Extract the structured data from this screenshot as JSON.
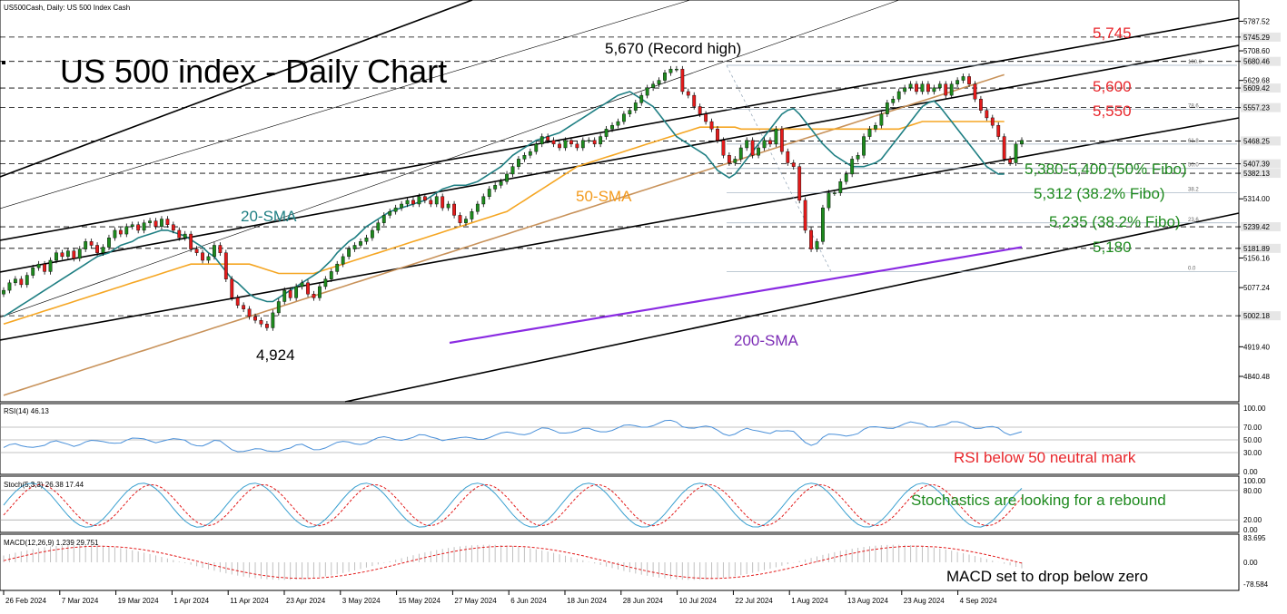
{
  "header": {
    "symbol_label": "US500Cash, Daily:  US 500 Index Cash",
    "title": "US 500 index - Daily Chart"
  },
  "colors": {
    "sma20": "#1f7f83",
    "sma50": "#f5a623",
    "sma100": "#c8925a",
    "sma200": "#8a2be2",
    "bull": "#1d8a1d",
    "bear": "#e31b1b",
    "annotation_red": "#e8262b",
    "annotation_green": "#1e8a1e",
    "rsi_line": "#4a90d9",
    "stoch_main": "#3aa0d0",
    "stoch_signal": "#e31b1b",
    "macd_hist": "#c0c0c0",
    "macd_signal": "#e31b1b"
  },
  "annotations": {
    "record_high": "5,670 (Record high)",
    "low_label": "4,924",
    "sma20_label": "20-SMA",
    "sma50_label": "50-SMA",
    "sma200_label": "200-SMA",
    "level_5745": "5,745",
    "level_5600": "5,600",
    "level_5550": "5,550",
    "level_5380": "5,380-5,400 (50% Fibo)",
    "level_5312": "5,312 (38.2% Fibo)",
    "level_5235": "5,235 (38.2% Fibo)",
    "level_5180": "5,180"
  },
  "fibo_labels": [
    "100.0",
    "78.6",
    "61.8",
    "50.0",
    "38.2",
    "23.6",
    "0.0"
  ],
  "price_axis": {
    "ticks": [
      "5787.52",
      "5745.29",
      "5708.60",
      "5680.46",
      "5629.68",
      "5609.42",
      "5557.23",
      "5468.25",
      "5407.39",
      "5382.13",
      "5314.00",
      "5239.42",
      "5181.89",
      "5156.16",
      "5077.24",
      "5002.18",
      "4919.40",
      "4840.48"
    ],
    "highlighted": [
      "5745.29",
      "5680.46",
      "5609.42",
      "5557.23",
      "5468.25",
      "5407.39",
      "5382.13",
      "5239.42",
      "5181.89",
      "5002.18"
    ]
  },
  "rsi": {
    "label": "RSI(14) 46.13",
    "ticks": [
      "100.00",
      "70.00",
      "50.00",
      "30.00",
      "0.00"
    ],
    "note": "RSI below 50 neutral mark"
  },
  "stoch": {
    "label": "Stoch(5,3,3) 26.38 17.44",
    "ticks": [
      "100.00",
      "80.00",
      "20.00",
      "0.00"
    ],
    "note": "Stochastics are looking for a rebound"
  },
  "macd": {
    "label": "MACD(12,26,9) 1.239 29.751",
    "ticks": [
      "83.695",
      "0.00",
      "-78.584"
    ],
    "note": "MACD set to drop below zero"
  },
  "date_axis": [
    "26 Feb 2024",
    "7 Mar 2024",
    "19 Mar 2024",
    "1 Apr 2024",
    "11 Apr 2024",
    "23 Apr 2024",
    "3 May 2024",
    "15 May 2024",
    "27 May 2024",
    "6 Jun 2024",
    "18 Jun 2024",
    "28 Jun 2024",
    "10 Jul 2024",
    "22 Jul 2024",
    "1 Aug 2024",
    "13 Aug 2024",
    "23 Aug 2024",
    "4 Sep 2024"
  ],
  "chart_data": {
    "type": "candlestick",
    "title": "US 500 index - Daily Chart",
    "y_range": [
      4780,
      5820
    ],
    "closes": [
      5070,
      5090,
      5100,
      5085,
      5110,
      5130,
      5140,
      5120,
      5150,
      5170,
      5160,
      5175,
      5155,
      5180,
      5200,
      5190,
      5170,
      5185,
      5210,
      5230,
      5220,
      5240,
      5245,
      5230,
      5250,
      5255,
      5240,
      5260,
      5245,
      5230,
      5210,
      5220,
      5180,
      5170,
      5150,
      5160,
      5190,
      5170,
      5100,
      5050,
      5030,
      5020,
      5000,
      4990,
      4980,
      4970,
      5010,
      5040,
      5070,
      5050,
      5080,
      5090,
      5060,
      5050,
      5080,
      5100,
      5120,
      5140,
      5160,
      5180,
      5190,
      5200,
      5210,
      5230,
      5250,
      5270,
      5280,
      5290,
      5300,
      5310,
      5300,
      5320,
      5310,
      5300,
      5320,
      5290,
      5300,
      5270,
      5250,
      5260,
      5280,
      5300,
      5320,
      5340,
      5350,
      5360,
      5380,
      5400,
      5420,
      5430,
      5440,
      5460,
      5480,
      5470,
      5460,
      5450,
      5470,
      5460,
      5450,
      5470,
      5470,
      5460,
      5480,
      5500,
      5510,
      5520,
      5540,
      5550,
      5570,
      5590,
      5610,
      5620,
      5630,
      5650,
      5660,
      5660,
      5600,
      5590,
      5560,
      5540,
      5520,
      5500,
      5470,
      5430,
      5410,
      5420,
      5450,
      5470,
      5430,
      5450,
      5470,
      5460,
      5500,
      5440,
      5410,
      5400,
      5310,
      5230,
      5180,
      5200,
      5290,
      5330,
      5330,
      5360,
      5380,
      5420,
      5430,
      5480,
      5500,
      5510,
      5540,
      5570,
      5580,
      5600,
      5610,
      5620,
      5600,
      5620,
      5600,
      5610,
      5620,
      5590,
      5620,
      5630,
      5640,
      5620,
      5580,
      5550,
      5530,
      5510,
      5480,
      5420,
      5410,
      5460,
      5470
    ],
    "sma20": [
      5000,
      5010,
      5020,
      5030,
      5040,
      5050,
      5060,
      5070,
      5080,
      5090,
      5100,
      5110,
      5120,
      5130,
      5140,
      5150,
      5160,
      5165,
      5170,
      5180,
      5190,
      5195,
      5200,
      5210,
      5215,
      5220,
      5225,
      5230,
      5230,
      5225,
      5220,
      5215,
      5205,
      5195,
      5185,
      5170,
      5160,
      5140,
      5120,
      5100,
      5090,
      5075,
      5060,
      5050,
      5045,
      5040,
      5040,
      5050,
      5060,
      5070,
      5080,
      5090,
      5100,
      5110,
      5120,
      5135,
      5150,
      5170,
      5185,
      5200,
      5210,
      5225,
      5240,
      5250,
      5260,
      5270,
      5280,
      5285,
      5290,
      5295,
      5300,
      5305,
      5310,
      5320,
      5330,
      5340,
      5345,
      5350,
      5350,
      5350,
      5355,
      5360,
      5370,
      5380,
      5390,
      5400,
      5415,
      5430,
      5440,
      5450,
      5460,
      5470,
      5475,
      5480,
      5485,
      5490,
      5500,
      5510,
      5520,
      5530,
      5540,
      5550,
      5560,
      5570,
      5580,
      5590,
      5595,
      5600,
      5590,
      5580,
      5570,
      5560,
      5540,
      5520,
      5500,
      5480,
      5470,
      5460,
      5450,
      5440,
      5430,
      5410,
      5390,
      5380,
      5370,
      5380,
      5400,
      5420,
      5440,
      5460,
      5480,
      5500,
      5520,
      5540,
      5550,
      5555,
      5540,
      5520,
      5500,
      5480,
      5460,
      5445,
      5430,
      5420,
      5410,
      5400,
      5400,
      5400,
      5405,
      5410,
      5420,
      5440,
      5460,
      5480,
      5500,
      5520,
      5540,
      5560,
      5570,
      5575,
      5560,
      5540,
      5520,
      5500,
      5480,
      5460,
      5440,
      5420,
      5400,
      5390,
      5380,
      5380
    ],
    "sma50": [
      4980,
      4985,
      4990,
      4995,
      5000,
      5005,
      5010,
      5015,
      5020,
      5025,
      5030,
      5035,
      5040,
      5045,
      5050,
      5055,
      5060,
      5065,
      5070,
      5075,
      5080,
      5085,
      5090,
      5095,
      5100,
      5105,
      5110,
      5115,
      5120,
      5125,
      5130,
      5135,
      5140,
      5140,
      5140,
      5140,
      5140,
      5140,
      5140,
      5140,
      5140,
      5140,
      5140,
      5135,
      5130,
      5125,
      5120,
      5115,
      5115,
      5115,
      5115,
      5115,
      5115,
      5115,
      5120,
      5125,
      5130,
      5135,
      5140,
      5145,
      5150,
      5155,
      5160,
      5165,
      5170,
      5175,
      5180,
      5185,
      5190,
      5195,
      5200,
      5205,
      5210,
      5215,
      5220,
      5225,
      5230,
      5235,
      5240,
      5245,
      5250,
      5255,
      5260,
      5265,
      5270,
      5275,
      5280,
      5290,
      5300,
      5310,
      5320,
      5330,
      5340,
      5350,
      5360,
      5370,
      5380,
      5390,
      5400,
      5405,
      5410,
      5415,
      5420,
      5425,
      5430,
      5435,
      5440,
      5445,
      5450,
      5455,
      5460,
      5465,
      5470,
      5475,
      5480,
      5485,
      5490,
      5495,
      5500,
      5505,
      5505,
      5505,
      5505,
      5505,
      5505,
      5505,
      5500,
      5500,
      5500,
      5500,
      5500,
      5500,
      5500,
      5500,
      5500,
      5500,
      5500,
      5500,
      5500,
      5500,
      5500,
      5500,
      5500,
      5500,
      5500,
      5500,
      5500,
      5500,
      5500,
      5500,
      5500,
      5500,
      5500,
      5500,
      5505,
      5510,
      5515,
      5520,
      5520,
      5520,
      5520,
      5520,
      5520,
      5520,
      5520,
      5520,
      5520,
      5520,
      5520,
      5520,
      5520,
      5520
    ],
    "sma100": [
      4790,
      4795,
      4800,
      4805,
      4810,
      4815,
      4820,
      4825,
      4830,
      4835,
      4840,
      4845,
      4850,
      4855,
      4860,
      4865,
      4870,
      4875,
      4880,
      4885,
      4890,
      4895,
      4900,
      4905,
      4910,
      4915,
      4920,
      4925,
      4930,
      4935,
      4940,
      4945,
      4950,
      4955,
      4960,
      4965,
      4970,
      4975,
      4980,
      4985,
      4990,
      4995,
      5000,
      5005,
      5010,
      5015,
      5020,
      5025,
      5030,
      5035,
      5040,
      5045,
      5050,
      5055,
      5060,
      5065,
      5070,
      5075,
      5080,
      5085,
      5090,
      5095,
      5100,
      5105,
      5110,
      5115,
      5120,
      5125,
      5130,
      5135,
      5140,
      5145,
      5150,
      5155,
      5160,
      5165,
      5170,
      5175,
      5180,
      5185,
      5190,
      5195,
      5200,
      5205,
      5210,
      5215,
      5220,
      5225,
      5230,
      5235,
      5240,
      5245,
      5250,
      5255,
      5260,
      5265,
      5270,
      5275,
      5280,
      5285,
      5290,
      5295,
      5300,
      5305,
      5310,
      5315,
      5320,
      5325,
      5330,
      5335,
      5340,
      5345,
      5350,
      5355,
      5360,
      5365,
      5370,
      5375,
      5380,
      5385,
      5390,
      5395,
      5400,
      5405,
      5410,
      5415,
      5420,
      5425,
      5430,
      5435,
      5440,
      5445,
      5450,
      5455,
      5460,
      5465,
      5470,
      5475,
      5480,
      5485,
      5490,
      5495,
      5500,
      5505,
      5510,
      5515,
      5520,
      5525,
      5530,
      5535,
      5540,
      5545,
      5550,
      5555,
      5560,
      5565,
      5570,
      5575,
      5580,
      5585,
      5590,
      5595,
      5600,
      5605,
      5610,
      5615,
      5620,
      5625,
      5630,
      5635,
      5640,
      5645
    ],
    "sma200": [
      4930,
      4935,
      4940,
      4945,
      4950,
      4955,
      4960,
      4965,
      4970,
      4975,
      4980,
      4985,
      4990,
      4995,
      5000,
      5005,
      5010,
      5015,
      5020,
      5025,
      5030,
      5035,
      5040,
      5045,
      5050,
      5055,
      5060,
      5065,
      5070,
      5075,
      5080,
      5085,
      5090,
      5095,
      5100,
      5105,
      5110,
      5115,
      5120,
      5125,
      5130,
      5135,
      5140,
      5145,
      5150,
      5155,
      5160,
      5165,
      5170,
      5175,
      5180,
      5185
    ],
    "fibo": {
      "high": 5670,
      "low": 5120
    }
  }
}
